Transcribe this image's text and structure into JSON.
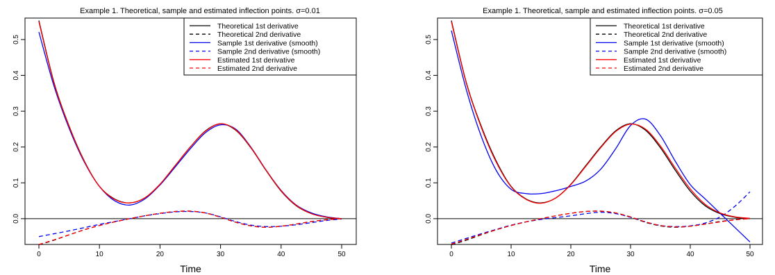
{
  "chart_data": [
    {
      "type": "line",
      "title": "Example 1. Theoretical, sample and estimated inflection points. σ=0.01",
      "xlabel": "Time",
      "ylabel": "",
      "xlim": [
        0,
        50
      ],
      "ylim": [
        -0.07,
        0.56
      ],
      "x_ticks": [
        "0",
        "10",
        "20",
        "30",
        "40",
        "50"
      ],
      "y_ticks": [
        "0.0",
        "0.1",
        "0.2",
        "0.3",
        "0.4",
        "0.5"
      ],
      "hline": 0,
      "legend_position": "top-right",
      "x": [
        0,
        2.5,
        5,
        7.5,
        10,
        12.5,
        15,
        17.5,
        20,
        22.5,
        25,
        27.5,
        30,
        32.5,
        35,
        37.5,
        40,
        42.5,
        45,
        47.5,
        50
      ],
      "series": [
        {
          "name": "Theoretical 1st derivative",
          "color": "#000000",
          "dash": "solid",
          "values": [
            0.553,
            0.38,
            0.258,
            0.161,
            0.09,
            0.055,
            0.044,
            0.058,
            0.096,
            0.148,
            0.2,
            0.245,
            0.265,
            0.247,
            0.198,
            0.135,
            0.077,
            0.036,
            0.014,
            0.004,
            0.0
          ]
        },
        {
          "name": "Theoretical 2nd derivative",
          "color": "#000000",
          "dash": "dashed",
          "values": [
            -0.073,
            -0.06,
            -0.045,
            -0.031,
            -0.019,
            -0.009,
            0.0,
            0.008,
            0.015,
            0.02,
            0.021,
            0.016,
            0.004,
            -0.01,
            -0.02,
            -0.024,
            -0.021,
            -0.015,
            -0.008,
            -0.003,
            0.0
          ]
        },
        {
          "name": "Sample 1st derivative (smooth)",
          "color": "#0000ee",
          "dash": "solid",
          "values": [
            0.521,
            0.37,
            0.252,
            0.158,
            0.09,
            0.05,
            0.038,
            0.055,
            0.094,
            0.144,
            0.195,
            0.24,
            0.262,
            0.25,
            0.2,
            0.136,
            0.079,
            0.038,
            0.016,
            0.005,
            0.0
          ]
        },
        {
          "name": "Sample 2nd derivative (smooth)",
          "color": "#0000ee",
          "dash": "dashed",
          "values": [
            -0.05,
            -0.042,
            -0.034,
            -0.025,
            -0.016,
            -0.008,
            0.0,
            0.008,
            0.014,
            0.019,
            0.02,
            0.016,
            0.005,
            -0.008,
            -0.018,
            -0.022,
            -0.021,
            -0.017,
            -0.011,
            -0.005,
            -0.001
          ]
        },
        {
          "name": "Estimated 1st derivative",
          "color": "#ff0000",
          "dash": "solid",
          "values": [
            0.55,
            0.378,
            0.257,
            0.16,
            0.09,
            0.054,
            0.044,
            0.058,
            0.096,
            0.148,
            0.2,
            0.244,
            0.265,
            0.248,
            0.199,
            0.136,
            0.078,
            0.037,
            0.014,
            0.004,
            0.0
          ]
        },
        {
          "name": "Estimated 2nd derivative",
          "color": "#ff0000",
          "dash": "dashed",
          "values": [
            -0.072,
            -0.059,
            -0.045,
            -0.031,
            -0.019,
            -0.009,
            0.0,
            0.008,
            0.015,
            0.02,
            0.021,
            0.016,
            0.004,
            -0.01,
            -0.02,
            -0.024,
            -0.021,
            -0.015,
            -0.008,
            -0.003,
            0.0
          ]
        }
      ]
    },
    {
      "type": "line",
      "title": "Example 1. Theoretical, sample and estimated inflection points. σ=0.05",
      "xlabel": "Time",
      "ylabel": "",
      "xlim": [
        0,
        50
      ],
      "ylim": [
        -0.07,
        0.56
      ],
      "x_ticks": [
        "0",
        "10",
        "20",
        "30",
        "40",
        "50"
      ],
      "y_ticks": [
        "0.0",
        "0.1",
        "0.2",
        "0.3",
        "0.4",
        "0.5"
      ],
      "hline": 0,
      "legend_position": "top-right",
      "x": [
        0,
        2.5,
        5,
        7.5,
        10,
        12.5,
        15,
        17.5,
        20,
        22.5,
        25,
        27.5,
        30,
        32.5,
        35,
        37.5,
        40,
        42.5,
        45,
        47.5,
        50
      ],
      "series": [
        {
          "name": "Theoretical 1st derivative",
          "color": "#000000",
          "dash": "solid",
          "values": [
            0.553,
            0.38,
            0.258,
            0.161,
            0.09,
            0.055,
            0.044,
            0.058,
            0.096,
            0.148,
            0.2,
            0.245,
            0.265,
            0.247,
            0.198,
            0.135,
            0.077,
            0.036,
            0.014,
            0.004,
            0.0
          ]
        },
        {
          "name": "Theoretical 2nd derivative",
          "color": "#000000",
          "dash": "dashed",
          "values": [
            -0.073,
            -0.06,
            -0.045,
            -0.031,
            -0.019,
            -0.009,
            0.0,
            0.008,
            0.015,
            0.02,
            0.021,
            0.016,
            0.004,
            -0.01,
            -0.02,
            -0.024,
            -0.021,
            -0.015,
            -0.008,
            -0.003,
            0.0
          ]
        },
        {
          "name": "Sample 1st derivative (smooth)",
          "color": "#0000ee",
          "dash": "solid",
          "values": [
            0.525,
            0.36,
            0.23,
            0.135,
            0.082,
            0.07,
            0.07,
            0.078,
            0.09,
            0.105,
            0.138,
            0.195,
            0.26,
            0.278,
            0.232,
            0.16,
            0.095,
            0.055,
            0.015,
            -0.025,
            -0.065
          ]
        },
        {
          "name": "Sample 2nd derivative (smooth)",
          "color": "#0000ee",
          "dash": "dashed",
          "values": [
            -0.068,
            -0.055,
            -0.042,
            -0.03,
            -0.018,
            -0.009,
            -0.002,
            0.003,
            0.008,
            0.014,
            0.018,
            0.014,
            0.004,
            -0.009,
            -0.019,
            -0.022,
            -0.02,
            -0.012,
            0.005,
            0.035,
            0.075
          ]
        },
        {
          "name": "Estimated 1st derivative",
          "color": "#ff0000",
          "dash": "solid",
          "values": [
            0.55,
            0.378,
            0.255,
            0.158,
            0.089,
            0.054,
            0.043,
            0.058,
            0.095,
            0.146,
            0.198,
            0.243,
            0.264,
            0.25,
            0.203,
            0.141,
            0.083,
            0.04,
            0.016,
            0.005,
            0.001
          ]
        },
        {
          "name": "Estimated 2nd derivative",
          "color": "#ff0000",
          "dash": "dashed",
          "values": [
            -0.071,
            -0.058,
            -0.044,
            -0.031,
            -0.019,
            -0.009,
            0.0,
            0.008,
            0.015,
            0.02,
            0.021,
            0.016,
            0.005,
            -0.009,
            -0.019,
            -0.023,
            -0.021,
            -0.015,
            -0.009,
            -0.003,
            0.0
          ]
        }
      ]
    }
  ]
}
